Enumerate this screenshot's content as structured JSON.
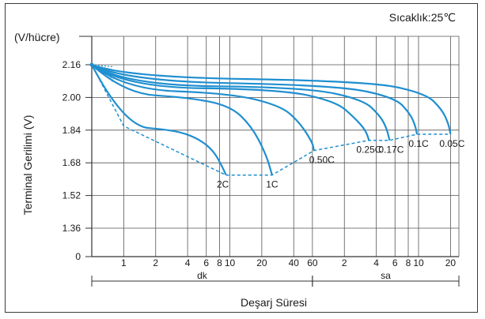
{
  "chart_data": {
    "type": "line",
    "title": "",
    "annotation": "Sıcaklık:25℃",
    "ylabel": "Terminal Gerilimi (V)",
    "yunit": "(V/hücre)",
    "xlabel": "Deşarj Süresi",
    "xlabel_note": "log scale; minutes (dk) up to 60, then hours (sa)",
    "yticks": [
      "0",
      "1.36",
      "1.52",
      "1.68",
      "1.84",
      "2.00",
      "2.16"
    ],
    "ytick_values": [
      0,
      1.36,
      1.52,
      1.68,
      1.84,
      2.0,
      2.16
    ],
    "ylim": [
      0,
      2.2
    ],
    "xticks": [
      "1",
      "2",
      "4",
      "6",
      "8",
      "10",
      "20",
      "40",
      "60",
      "2",
      "4",
      "6",
      "8",
      "10",
      "20"
    ],
    "xtick_minutes": [
      1,
      2,
      4,
      6,
      8,
      10,
      20,
      40,
      60,
      120,
      240,
      360,
      480,
      600,
      1200
    ],
    "xgroups": [
      {
        "label": "dk",
        "from_min": 0.5,
        "to_min": 60
      },
      {
        "label": "sa",
        "from_min": 60,
        "to_min": 1440
      }
    ],
    "xlim_minutes": [
      0.5,
      1440
    ],
    "curve_color": "#1f8fd0",
    "series": [
      {
        "name": "2C",
        "points": [
          [
            0.5,
            2.16
          ],
          [
            1,
            1.86
          ],
          [
            3,
            1.84
          ],
          [
            5,
            1.8
          ],
          [
            7,
            1.74
          ],
          [
            8.5,
            1.66
          ],
          [
            9.2,
            1.62
          ]
        ],
        "end_minutes": 9.2
      },
      {
        "name": "1C",
        "points": [
          [
            0.5,
            2.16
          ],
          [
            1,
            2.02
          ],
          [
            4,
            2.0
          ],
          [
            10,
            1.96
          ],
          [
            16,
            1.86
          ],
          [
            22,
            1.72
          ],
          [
            25,
            1.62
          ]
        ],
        "end_minutes": 25
      },
      {
        "name": "0.50C",
        "points": [
          [
            0.5,
            2.16
          ],
          [
            1,
            2.04
          ],
          [
            10,
            2.02
          ],
          [
            30,
            1.96
          ],
          [
            45,
            1.88
          ],
          [
            60,
            1.78
          ],
          [
            62,
            1.74
          ]
        ],
        "end_minutes": 62
      },
      {
        "name": "0.25C",
        "points": [
          [
            0.5,
            2.16
          ],
          [
            1,
            2.05
          ],
          [
            30,
            2.04
          ],
          [
            100,
            1.98
          ],
          [
            150,
            1.9
          ],
          [
            190,
            1.84
          ],
          [
            205,
            1.79
          ]
        ],
        "end_minutes": 205
      },
      {
        "name": "0.17C",
        "points": [
          [
            0.5,
            2.16
          ],
          [
            1,
            2.06
          ],
          [
            50,
            2.05
          ],
          [
            180,
            1.99
          ],
          [
            260,
            1.91
          ],
          [
            300,
            1.85
          ],
          [
            320,
            1.79
          ]
        ],
        "end_minutes": 320
      },
      {
        "name": "0.1C",
        "points": [
          [
            0.5,
            2.16
          ],
          [
            1,
            2.08
          ],
          [
            100,
            2.06
          ],
          [
            360,
            2.0
          ],
          [
            500,
            1.92
          ],
          [
            560,
            1.86
          ],
          [
            580,
            1.82
          ]
        ],
        "end_minutes": 580
      },
      {
        "name": "0.05C",
        "points": [
          [
            0.5,
            2.16
          ],
          [
            1,
            2.1
          ],
          [
            200,
            2.08
          ],
          [
            700,
            2.02
          ],
          [
            1000,
            1.94
          ],
          [
            1150,
            1.87
          ],
          [
            1200,
            1.82
          ]
        ],
        "end_minutes": 1200
      }
    ],
    "cutoff_line": {
      "style": "dashed",
      "points": [
        [
          0.5,
          2.16
        ],
        [
          1,
          1.86
        ],
        [
          9.2,
          1.62
        ],
        [
          25,
          1.62
        ],
        [
          62,
          1.74
        ],
        [
          205,
          1.79
        ],
        [
          320,
          1.79
        ],
        [
          580,
          1.82
        ],
        [
          1200,
          1.82
        ]
      ]
    },
    "grid": true
  }
}
